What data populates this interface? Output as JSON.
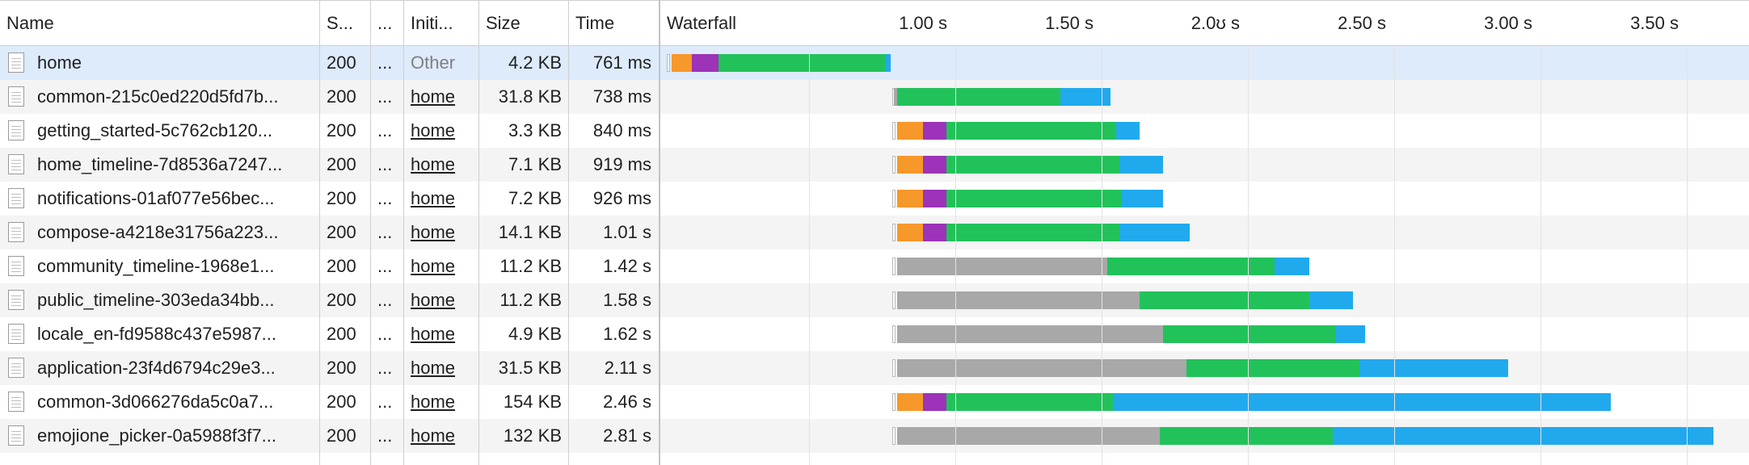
{
  "columns": {
    "name": "Name",
    "status": "S...",
    "type": "...",
    "initiator": "Initi...",
    "size": "Size",
    "time": "Time",
    "waterfall": "Waterfall"
  },
  "timeline": {
    "ticks": [
      "1.00 s",
      "1.50 s",
      "2.0ʊ s",
      "2.50 s",
      "3.00 s",
      "3.50 s"
    ],
    "tick_values": [
      1.0,
      1.5,
      2.0,
      2.5,
      3.0,
      3.5
    ]
  },
  "colors": {
    "stall": "#a8a8a8",
    "connect": "#f7982a",
    "ssl": "#9c33b8",
    "ttfb": "#22c25a",
    "download": "#21a9ee",
    "selected_row": "#ddebfb"
  },
  "rows": [
    {
      "name": "home",
      "status": "200",
      "type": "...",
      "initiator": "Other",
      "initiator_kind": "other",
      "size": "4.2 KB",
      "time": "761 ms",
      "selected": true,
      "timing": {
        "start": 0.02,
        "connect": [
          0.03,
          0.1
        ],
        "ssl": [
          0.1,
          0.19
        ],
        "ttfb": [
          0.19,
          0.76
        ],
        "download": [
          0.76,
          0.78
        ]
      }
    },
    {
      "name": "common-215c0ed220d5fd7b...",
      "status": "200",
      "type": "...",
      "initiator": "home",
      "initiator_kind": "link",
      "size": "31.8 KB",
      "time": "738 ms",
      "timing": {
        "start": 0.79,
        "stall": [
          0.79,
          0.8
        ],
        "ttfb": [
          0.8,
          1.36
        ],
        "download": [
          1.36,
          1.53
        ]
      }
    },
    {
      "name": "getting_started-5c762cb120...",
      "status": "200",
      "type": "...",
      "initiator": "home",
      "initiator_kind": "link",
      "size": "3.3 KB",
      "time": "840 ms",
      "timing": {
        "start": 0.79,
        "connect": [
          0.8,
          0.89
        ],
        "ssl": [
          0.89,
          0.97
        ],
        "ttfb": [
          0.97,
          1.55
        ],
        "download": [
          1.55,
          1.63
        ]
      }
    },
    {
      "name": "home_timeline-7d8536a7247...",
      "status": "200",
      "type": "...",
      "initiator": "home",
      "initiator_kind": "link",
      "size": "7.1 KB",
      "time": "919 ms",
      "timing": {
        "start": 0.79,
        "connect": [
          0.8,
          0.89
        ],
        "ssl": [
          0.89,
          0.97
        ],
        "ttfb": [
          0.97,
          1.56
        ],
        "download": [
          1.56,
          1.71
        ]
      }
    },
    {
      "name": "notifications-01af077e56bec...",
      "status": "200",
      "type": "...",
      "initiator": "home",
      "initiator_kind": "link",
      "size": "7.2 KB",
      "time": "926 ms",
      "timing": {
        "start": 0.79,
        "connect": [
          0.8,
          0.89
        ],
        "ssl": [
          0.89,
          0.97
        ],
        "ttfb": [
          0.97,
          1.57
        ],
        "download": [
          1.57,
          1.71
        ]
      }
    },
    {
      "name": "compose-a4218e31756a223...",
      "status": "200",
      "type": "...",
      "initiator": "home",
      "initiator_kind": "link",
      "size": "14.1 KB",
      "time": "1.01 s",
      "timing": {
        "start": 0.79,
        "connect": [
          0.8,
          0.89
        ],
        "ssl": [
          0.89,
          0.97
        ],
        "ttfb": [
          0.97,
          1.56
        ],
        "download": [
          1.56,
          1.8
        ]
      }
    },
    {
      "name": "community_timeline-1968e1...",
      "status": "200",
      "type": "...",
      "initiator": "home",
      "initiator_kind": "link",
      "size": "11.2 KB",
      "time": "1.42 s",
      "timing": {
        "start": 0.79,
        "stall": [
          0.8,
          1.52
        ],
        "ttfb": [
          1.52,
          2.09
        ],
        "download": [
          2.09,
          2.21
        ]
      }
    },
    {
      "name": "public_timeline-303eda34bb...",
      "status": "200",
      "type": "...",
      "initiator": "home",
      "initiator_kind": "link",
      "size": "11.2 KB",
      "time": "1.58 s",
      "timing": {
        "start": 0.79,
        "stall": [
          0.8,
          1.63
        ],
        "ttfb": [
          1.63,
          2.21
        ],
        "download": [
          2.21,
          2.36
        ]
      }
    },
    {
      "name": "locale_en-fd9588c437e5987...",
      "status": "200",
      "type": "...",
      "initiator": "home",
      "initiator_kind": "link",
      "size": "4.9 KB",
      "time": "1.62 s",
      "timing": {
        "start": 0.79,
        "stall": [
          0.8,
          1.71
        ],
        "ttfb": [
          1.71,
          2.3
        ],
        "download": [
          2.3,
          2.4
        ]
      }
    },
    {
      "name": "application-23f4d6794c29e3...",
      "status": "200",
      "type": "...",
      "initiator": "home",
      "initiator_kind": "link",
      "size": "31.5 KB",
      "time": "2.11 s",
      "timing": {
        "start": 0.79,
        "stall": [
          0.8,
          1.79
        ],
        "ttfb": [
          1.79,
          2.38
        ],
        "download": [
          2.38,
          2.89
        ]
      }
    },
    {
      "name": "common-3d066276da5c0a7...",
      "status": "200",
      "type": "...",
      "initiator": "home",
      "initiator_kind": "link",
      "size": "154 KB",
      "time": "2.46 s",
      "timing": {
        "start": 0.79,
        "connect": [
          0.8,
          0.89
        ],
        "ssl": [
          0.89,
          0.97
        ],
        "ttfb": [
          0.97,
          1.54
        ],
        "download": [
          1.54,
          3.24
        ]
      }
    },
    {
      "name": "emojione_picker-0a5988f3f7...",
      "status": "200",
      "type": "...",
      "initiator": "home",
      "initiator_kind": "link",
      "size": "132 KB",
      "time": "2.81 s",
      "timing": {
        "start": 0.79,
        "stall": [
          0.8,
          1.7
        ],
        "ttfb": [
          1.7,
          2.29
        ],
        "download": [
          2.29,
          3.59
        ]
      }
    }
  ]
}
